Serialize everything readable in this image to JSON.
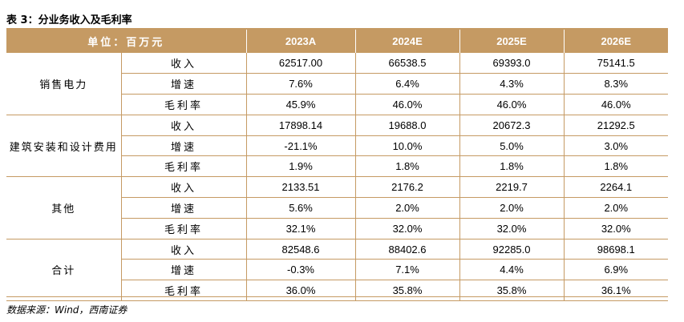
{
  "title": "表 3：分业务收入及毛利率",
  "header": {
    "unit": "单位：百万元",
    "years": [
      "2023A",
      "2024E",
      "2025E",
      "2026E"
    ]
  },
  "groups": [
    {
      "name": "销售电力",
      "rows": [
        {
          "metric": "收入",
          "values": [
            "62517.00",
            "66538.5",
            "69393.0",
            "75141.5"
          ]
        },
        {
          "metric": "增速",
          "values": [
            "7.6%",
            "6.4%",
            "4.3%",
            "8.3%"
          ]
        },
        {
          "metric": "毛利率",
          "values": [
            "45.9%",
            "46.0%",
            "46.0%",
            "46.0%"
          ]
        }
      ]
    },
    {
      "name": "建筑安装和设计费用",
      "rows": [
        {
          "metric": "收入",
          "values": [
            "17898.14",
            "19688.0",
            "20672.3",
            "21292.5"
          ]
        },
        {
          "metric": "增速",
          "values": [
            "-21.1%",
            "10.0%",
            "5.0%",
            "3.0%"
          ]
        },
        {
          "metric": "毛利率",
          "values": [
            "1.9%",
            "1.8%",
            "1.8%",
            "1.8%"
          ]
        }
      ]
    },
    {
      "name": "其他",
      "rows": [
        {
          "metric": "收入",
          "values": [
            "2133.51",
            "2176.2",
            "2219.7",
            "2264.1"
          ]
        },
        {
          "metric": "增速",
          "values": [
            "5.6%",
            "2.0%",
            "2.0%",
            "2.0%"
          ]
        },
        {
          "metric": "毛利率",
          "values": [
            "32.1%",
            "32.0%",
            "32.0%",
            "32.0%"
          ]
        }
      ]
    },
    {
      "name": "合计",
      "rows": [
        {
          "metric": "收入",
          "values": [
            "82548.6",
            "88402.6",
            "92285.0",
            "98698.1"
          ]
        },
        {
          "metric": "增速",
          "values": [
            "-0.3%",
            "7.1%",
            "4.4%",
            "6.9%"
          ]
        },
        {
          "metric": "毛利率",
          "values": [
            "36.0%",
            "35.8%",
            "35.8%",
            "36.1%"
          ]
        }
      ]
    }
  ],
  "source": "数据来源：Wind，西南证券"
}
